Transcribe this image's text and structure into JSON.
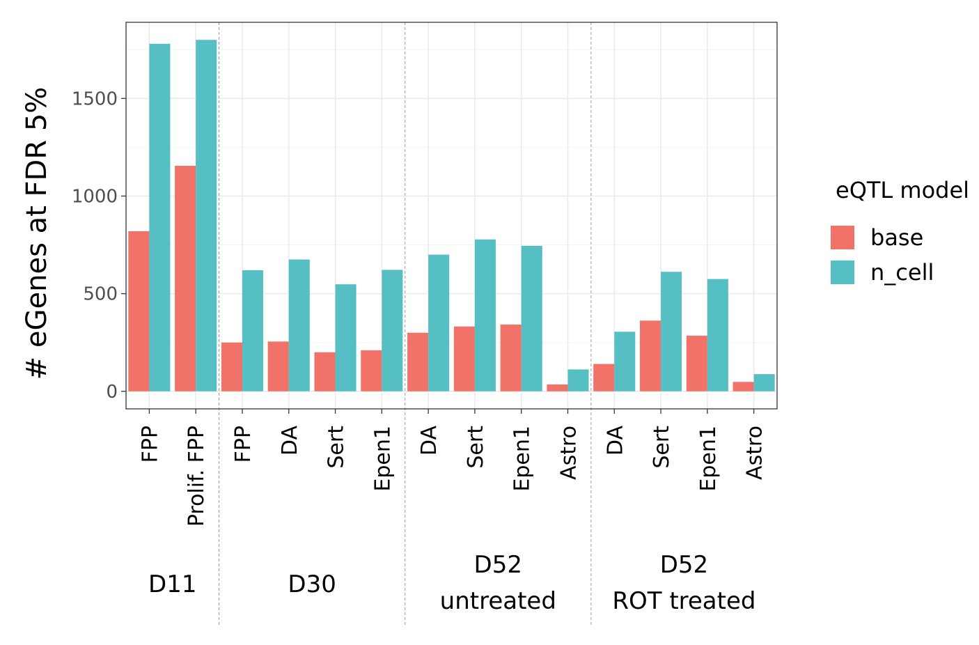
{
  "chart_data": {
    "type": "bar",
    "title": "",
    "xlabel": "",
    "ylabel": "# eGenes at FDR 5%",
    "ylim": [
      -90,
      1890
    ],
    "yticks": [
      0,
      500,
      1000,
      1500
    ],
    "grid": true,
    "legend": {
      "title": "eQTL model",
      "placement": "right",
      "entries": [
        "base",
        "n_cell"
      ]
    },
    "colors": {
      "base": "#F07269",
      "n_cell": "#55BFC4"
    },
    "categories": [
      "FPP",
      "Prolif. FPP",
      "FPP",
      "DA",
      "Sert",
      "Epen1",
      "DA",
      "Sert",
      "Epen1",
      "Astro",
      "DA",
      "Sert",
      "Epen1",
      "Astro"
    ],
    "groups": [
      {
        "label": [
          "D11"
        ],
        "start": 0,
        "end": 1
      },
      {
        "label": [
          "D30"
        ],
        "start": 2,
        "end": 5
      },
      {
        "label": [
          "D52",
          "untreated"
        ],
        "start": 6,
        "end": 9
      },
      {
        "label": [
          "D52",
          "ROT treated"
        ],
        "start": 10,
        "end": 13
      }
    ],
    "series": [
      {
        "name": "base",
        "values": [
          820,
          1155,
          250,
          255,
          200,
          210,
          300,
          332,
          342,
          35,
          140,
          362,
          285,
          48
        ]
      },
      {
        "name": "n_cell",
        "values": [
          1780,
          1800,
          620,
          675,
          548,
          622,
          700,
          778,
          745,
          112,
          305,
          612,
          575,
          88
        ]
      }
    ]
  }
}
